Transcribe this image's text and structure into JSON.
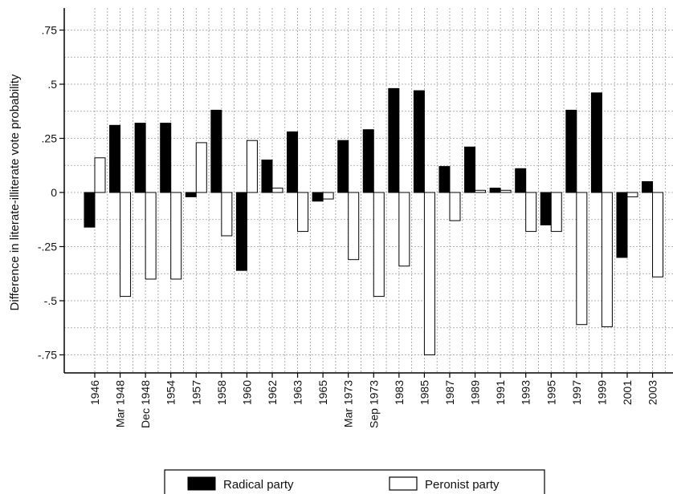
{
  "chart_data": {
    "type": "bar",
    "title": "",
    "xlabel": "",
    "ylabel": "Difference in literate-illiterate vote probability",
    "ylim": [
      -0.82,
      0.82
    ],
    "grid": true,
    "legend_position": "bottom",
    "yticks": [
      {
        "value": 0.75,
        "label": ".75"
      },
      {
        "value": 0.5,
        "label": ".5"
      },
      {
        "value": 0.25,
        "label": ".25"
      },
      {
        "value": 0,
        "label": "0"
      },
      {
        "value": -0.25,
        "label": "-.25"
      },
      {
        "value": -0.5,
        "label": "-.5"
      },
      {
        "value": -0.75,
        "label": "-.75"
      }
    ],
    "categories": [
      "1946",
      "Mar 1948",
      "Dec 1948",
      "1954",
      "1957",
      "1958",
      "1960",
      "1962",
      "1963",
      "1965",
      "Mar 1973",
      "Sep 1973",
      "1983",
      "1985",
      "1987",
      "1989",
      "1991",
      "1993",
      "1995",
      "1997",
      "1999",
      "2001",
      "2003"
    ],
    "series": [
      {
        "name": "Radical party",
        "color": "#000000",
        "values": [
          -0.16,
          0.31,
          0.32,
          0.32,
          -0.02,
          0.38,
          -0.36,
          0.15,
          0.28,
          -0.04,
          0.24,
          0.29,
          0.48,
          0.47,
          0.12,
          0.21,
          0.02,
          0.11,
          -0.15,
          0.38,
          0.46,
          -0.3,
          0.05
        ]
      },
      {
        "name": "Peronist party",
        "color": "#ffffff",
        "values": [
          0.16,
          -0.48,
          -0.4,
          -0.4,
          0.23,
          -0.2,
          0.24,
          0.02,
          -0.18,
          -0.03,
          -0.31,
          -0.48,
          -0.34,
          -0.75,
          -0.13,
          0.01,
          0.01,
          -0.18,
          -0.18,
          -0.61,
          -0.62,
          -0.02,
          -0.39
        ]
      }
    ]
  }
}
